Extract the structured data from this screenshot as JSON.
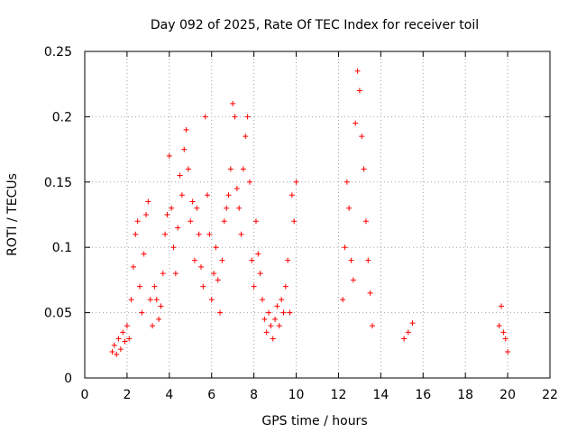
{
  "chart_data": {
    "type": "scatter",
    "title": "Day 092 of 2025, Rate Of TEC Index for receiver toil",
    "xlabel": "GPS time / hours",
    "ylabel": "ROTI / TECUs",
    "xlim": [
      0,
      22
    ],
    "ylim": [
      0,
      0.25
    ],
    "xticks": [
      0,
      2,
      4,
      6,
      8,
      10,
      12,
      14,
      16,
      18,
      20,
      22
    ],
    "xtick_labels": [
      "0",
      "2",
      "4",
      "6",
      "8",
      "10",
      "12",
      "14",
      "16",
      "18",
      "20",
      "22"
    ],
    "yticks": [
      0,
      0.05,
      0.1,
      0.15,
      0.2,
      0.25
    ],
    "ytick_labels": [
      "0",
      "0.05",
      "0.1",
      "0.15",
      "0.2",
      "0.25"
    ],
    "grid": true,
    "marker": "+",
    "color": "#ff0000",
    "series": [
      {
        "name": "ROTI",
        "points": [
          [
            1.3,
            0.02
          ],
          [
            1.4,
            0.025
          ],
          [
            1.5,
            0.018
          ],
          [
            1.6,
            0.03
          ],
          [
            1.7,
            0.022
          ],
          [
            1.8,
            0.035
          ],
          [
            1.9,
            0.028
          ],
          [
            2.0,
            0.04
          ],
          [
            2.1,
            0.03
          ],
          [
            2.2,
            0.06
          ],
          [
            2.3,
            0.085
          ],
          [
            2.4,
            0.11
          ],
          [
            2.5,
            0.12
          ],
          [
            2.6,
            0.07
          ],
          [
            2.7,
            0.05
          ],
          [
            2.8,
            0.095
          ],
          [
            2.9,
            0.125
          ],
          [
            3.0,
            0.135
          ],
          [
            3.1,
            0.06
          ],
          [
            3.2,
            0.04
          ],
          [
            3.3,
            0.07
          ],
          [
            3.4,
            0.06
          ],
          [
            3.5,
            0.045
          ],
          [
            3.6,
            0.055
          ],
          [
            3.7,
            0.08
          ],
          [
            3.8,
            0.11
          ],
          [
            3.9,
            0.125
          ],
          [
            4.0,
            0.17
          ],
          [
            4.1,
            0.13
          ],
          [
            4.2,
            0.1
          ],
          [
            4.3,
            0.08
          ],
          [
            4.4,
            0.115
          ],
          [
            4.5,
            0.155
          ],
          [
            4.6,
            0.14
          ],
          [
            4.7,
            0.175
          ],
          [
            4.8,
            0.19
          ],
          [
            4.9,
            0.16
          ],
          [
            5.0,
            0.12
          ],
          [
            5.1,
            0.135
          ],
          [
            5.2,
            0.09
          ],
          [
            5.3,
            0.13
          ],
          [
            5.4,
            0.11
          ],
          [
            5.5,
            0.085
          ],
          [
            5.6,
            0.07
          ],
          [
            5.7,
            0.2
          ],
          [
            5.8,
            0.14
          ],
          [
            5.9,
            0.11
          ],
          [
            6.0,
            0.06
          ],
          [
            6.1,
            0.08
          ],
          [
            6.2,
            0.1
          ],
          [
            6.3,
            0.075
          ],
          [
            6.4,
            0.05
          ],
          [
            6.5,
            0.09
          ],
          [
            6.6,
            0.12
          ],
          [
            6.7,
            0.13
          ],
          [
            6.8,
            0.14
          ],
          [
            6.9,
            0.16
          ],
          [
            7.0,
            0.21
          ],
          [
            7.1,
            0.2
          ],
          [
            7.2,
            0.145
          ],
          [
            7.3,
            0.13
          ],
          [
            7.4,
            0.11
          ],
          [
            7.5,
            0.16
          ],
          [
            7.6,
            0.185
          ],
          [
            7.7,
            0.2
          ],
          [
            7.8,
            0.15
          ],
          [
            7.9,
            0.09
          ],
          [
            8.0,
            0.07
          ],
          [
            8.1,
            0.12
          ],
          [
            8.2,
            0.095
          ],
          [
            8.3,
            0.08
          ],
          [
            8.4,
            0.06
          ],
          [
            8.5,
            0.045
          ],
          [
            8.6,
            0.035
          ],
          [
            8.7,
            0.05
          ],
          [
            8.8,
            0.04
          ],
          [
            8.9,
            0.03
          ],
          [
            9.0,
            0.045
          ],
          [
            9.1,
            0.055
          ],
          [
            9.2,
            0.04
          ],
          [
            9.3,
            0.06
          ],
          [
            9.4,
            0.05
          ],
          [
            9.5,
            0.07
          ],
          [
            9.6,
            0.09
          ],
          [
            9.7,
            0.05
          ],
          [
            9.8,
            0.14
          ],
          [
            9.9,
            0.12
          ],
          [
            10.0,
            0.15
          ],
          [
            12.2,
            0.06
          ],
          [
            12.3,
            0.1
          ],
          [
            12.4,
            0.15
          ],
          [
            12.5,
            0.13
          ],
          [
            12.6,
            0.09
          ],
          [
            12.7,
            0.075
          ],
          [
            12.8,
            0.195
          ],
          [
            12.9,
            0.235
          ],
          [
            13.0,
            0.22
          ],
          [
            13.1,
            0.185
          ],
          [
            13.2,
            0.16
          ],
          [
            13.3,
            0.12
          ],
          [
            13.4,
            0.09
          ],
          [
            13.5,
            0.065
          ],
          [
            13.6,
            0.04
          ],
          [
            15.1,
            0.03
          ],
          [
            15.3,
            0.035
          ],
          [
            15.5,
            0.042
          ],
          [
            19.6,
            0.04
          ],
          [
            19.7,
            0.055
          ],
          [
            19.8,
            0.035
          ],
          [
            19.9,
            0.03
          ],
          [
            20.0,
            0.02
          ]
        ]
      }
    ]
  }
}
